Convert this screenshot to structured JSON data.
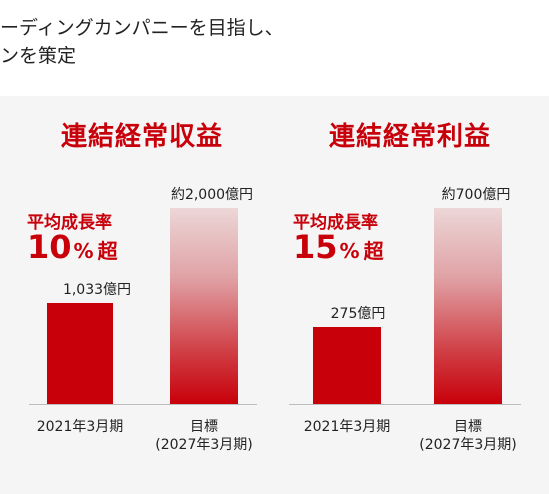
{
  "heading": {
    "line1": "ーディングカンパニーを目指し、",
    "line2": "ンを策定"
  },
  "chart_data": [
    {
      "type": "bar",
      "title": "連結経常収益",
      "growth_label": "平均成長率",
      "growth_value": "10",
      "growth_unit": "%",
      "growth_suffix": "超",
      "categories": [
        "2021年3月期",
        "目標\n(2027年3月期)"
      ],
      "category_lines": [
        [
          "2021年3月期"
        ],
        [
          "目標",
          "(2027年3月期)"
        ]
      ],
      "values": [
        1033,
        2000
      ],
      "value_labels": [
        "1,033億円",
        "約2,000億円"
      ],
      "colors": [
        "#c8000a",
        "#c8000a"
      ]
    },
    {
      "type": "bar",
      "title": "連結経常利益",
      "growth_label": "平均成長率",
      "growth_value": "15",
      "growth_unit": "%",
      "growth_suffix": "超",
      "categories": [
        "2021年3月期",
        "目標\n(2027年3月期)"
      ],
      "category_lines": [
        [
          "2021年3月期"
        ],
        [
          "目標",
          "(2027年3月期)"
        ]
      ],
      "values": [
        275,
        700
      ],
      "value_labels": [
        "275億円",
        "約700億円"
      ],
      "colors": [
        "#c8000a",
        "#c8000a"
      ]
    }
  ]
}
